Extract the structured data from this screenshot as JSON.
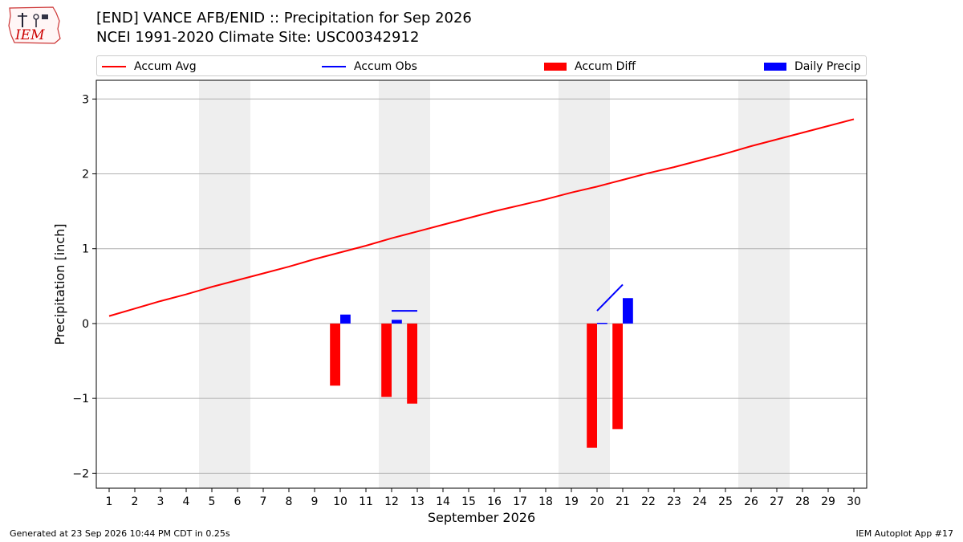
{
  "header": {
    "logo_text": "IEM",
    "title_line1": "[END] VANCE AFB/ENID :: Precipitation for Sep 2026",
    "title_line2": "NCEI 1991-2020 Climate Site: USC00342912"
  },
  "legend": {
    "items": [
      {
        "label": "Accum Avg",
        "kind": "line",
        "color": "#ff0000"
      },
      {
        "label": "Accum Obs",
        "kind": "line",
        "color": "#0000ff"
      },
      {
        "label": "Accum Diff",
        "kind": "rect",
        "color": "#ff0000"
      },
      {
        "label": "Daily Precip",
        "kind": "rect",
        "color": "#0000ff"
      }
    ]
  },
  "footer": {
    "generated": "Generated at 23 Sep 2026 10:44 PM CDT in 0.25s",
    "app": "IEM Autoplot App #17"
  },
  "chart_data": {
    "type": "bar",
    "title": "[END] VANCE AFB/ENID :: Precipitation for Sep 2026",
    "subtitle": "NCEI 1991-2020 Climate Site: USC00342912",
    "xlabel": "September 2026",
    "ylabel": "Precipitation [inch]",
    "xlim": [
      0.5,
      30.5
    ],
    "ylim": [
      -2.2,
      3.25
    ],
    "x_ticks": [
      1,
      2,
      3,
      4,
      5,
      6,
      7,
      8,
      9,
      10,
      11,
      12,
      13,
      14,
      15,
      16,
      17,
      18,
      19,
      20,
      21,
      22,
      23,
      24,
      25,
      26,
      27,
      28,
      29,
      30
    ],
    "y_ticks": [
      -2,
      -1,
      0,
      1,
      2,
      3
    ],
    "y_tick_labels": [
      "−2",
      "−1",
      "0",
      "1",
      "2",
      "3"
    ],
    "grid": "horizontal",
    "legend_position": "top",
    "weekend_shading": [
      [
        5,
        6
      ],
      [
        12,
        13
      ],
      [
        19,
        20
      ],
      [
        26,
        27
      ]
    ],
    "colors": {
      "avg": "#ff0000",
      "obs": "#0000ff",
      "diff": "#ff0000",
      "daily": "#0000ff",
      "weekend": "#eeeeee"
    },
    "accum_avg": {
      "x": [
        1,
        2,
        3,
        4,
        5,
        6,
        7,
        8,
        9,
        10,
        11,
        12,
        13,
        14,
        15,
        16,
        17,
        18,
        19,
        20,
        21,
        22,
        23,
        24,
        25,
        26,
        27,
        28,
        29,
        30
      ],
      "values": [
        0.1,
        0.2,
        0.3,
        0.39,
        0.49,
        0.58,
        0.67,
        0.76,
        0.86,
        0.95,
        1.04,
        1.14,
        1.23,
        1.32,
        1.41,
        1.5,
        1.58,
        1.66,
        1.75,
        1.83,
        1.92,
        2.01,
        2.09,
        2.18,
        2.27,
        2.37,
        2.46,
        2.55,
        2.64,
        2.73
      ]
    },
    "accum_obs": {
      "x": [
        12,
        13,
        20,
        21
      ],
      "values": [
        0.17,
        0.17,
        0.17,
        0.52
      ],
      "segments": [
        [
          12,
          13
        ],
        [
          20,
          21
        ]
      ]
    },
    "accum_diff": {
      "x": [
        10,
        12,
        13,
        20,
        21
      ],
      "values": [
        -0.83,
        -0.98,
        -1.07,
        -1.66,
        -1.41
      ]
    },
    "daily_precip": {
      "x": [
        10,
        12,
        20,
        21
      ],
      "values": [
        0.12,
        0.05,
        0.01,
        0.34
      ]
    }
  }
}
